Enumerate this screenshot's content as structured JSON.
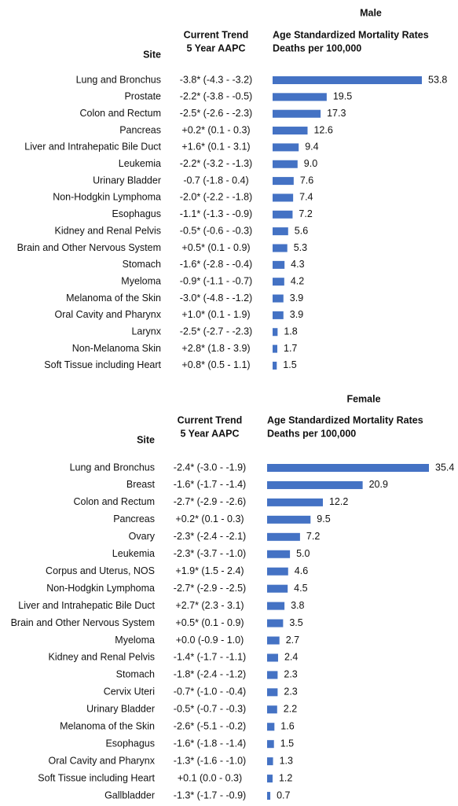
{
  "chart_data": [
    {
      "type": "bar",
      "title": "Male",
      "color": "#4472c4",
      "site_header": "Site",
      "trend_header": [
        "Current Trend",
        "5 Year AAPC"
      ],
      "value_header": [
        "Age Standardized Mortality Rates",
        "Deaths per 100,000"
      ],
      "categories": [
        "Lung and Bronchus",
        "Prostate",
        "Colon and Rectum",
        "Pancreas",
        "Liver and Intrahepatic Bile Duct",
        "Leukemia",
        "Urinary Bladder",
        "Non-Hodgkin Lymphoma",
        "Esophagus",
        "Kidney and Renal Pelvis",
        "Brain and Other Nervous System",
        "Stomach",
        "Myeloma",
        "Melanoma of the Skin",
        "Oral Cavity and Pharynx",
        "Larynx",
        "Non-Melanoma Skin",
        "Soft Tissue including Heart"
      ],
      "trends": [
        "-3.8* (-4.3 - -3.2)",
        "-2.2* (-3.8 - -0.5)",
        "-2.5* (-2.6 - -2.3)",
        "+0.2* (0.1 - 0.3)",
        "+1.6* (0.1 - 3.1)",
        "-2.2* (-3.2 - -1.3)",
        "-0.7 (-1.8 - 0.4)",
        "-2.0* (-2.2 - -1.8)",
        "-1.1* (-1.3 - -0.9)",
        "-0.5* (-0.6 - -0.3)",
        "+0.5* (0.1 - 0.9)",
        "-1.6* (-2.8 - -0.4)",
        "-0.9* (-1.1 - -0.7)",
        "-3.0* (-4.8 - -1.2)",
        "+1.0* (0.1 - 1.9)",
        "-2.5* (-2.7 - -2.3)",
        "+2.8* (1.8 - 3.9)",
        "+0.8* (0.5 - 1.1)"
      ],
      "values": [
        53.8,
        19.5,
        17.3,
        12.6,
        9.4,
        9.0,
        7.6,
        7.4,
        7.2,
        5.6,
        5.3,
        4.3,
        4.2,
        3.9,
        3.9,
        1.8,
        1.7,
        1.5
      ],
      "value_labels": [
        "53.8",
        "19.5",
        "17.3",
        "12.6",
        "9.4",
        "9.0",
        "7.6",
        "7.4",
        "7.2",
        "5.6",
        "5.3",
        "4.3",
        "4.2",
        "3.9",
        "3.9",
        "1.8",
        "1.7",
        "1.5"
      ]
    },
    {
      "type": "bar",
      "title": "Female",
      "color": "#4472c4",
      "site_header": "Site",
      "trend_header": [
        "Current Trend",
        "5 Year AAPC"
      ],
      "value_header": [
        "Age Standardized Mortality Rates",
        "Deaths per 100,000"
      ],
      "categories": [
        "Lung and Bronchus",
        "Breast",
        "Colon and Rectum",
        "Pancreas",
        "Ovary",
        "Leukemia",
        "Corpus and Uterus, NOS",
        "Non-Hodgkin Lymphoma",
        "Liver and Intrahepatic Bile Duct",
        "Brain and Other Nervous System",
        "Myeloma",
        "Kidney and Renal Pelvis",
        "Stomach",
        "Cervix Uteri",
        "Urinary Bladder",
        "Melanoma of the Skin",
        "Esophagus",
        "Oral Cavity and Pharynx",
        "Soft Tissue including Heart",
        "Gallbladder"
      ],
      "trends": [
        "-2.4* (-3.0 - -1.9)",
        "-1.6* (-1.7 - -1.4)",
        "-2.7* (-2.9 - -2.6)",
        "+0.2* (0.1 - 0.3)",
        "-2.3* (-2.4 - -2.1)",
        "-2.3* (-3.7 - -1.0)",
        "+1.9* (1.5 - 2.4)",
        "-2.7* (-2.9 - -2.5)",
        "+2.7* (2.3 - 3.1)",
        "+0.5* (0.1 - 0.9)",
        "+0.0 (-0.9 - 1.0)",
        "-1.4* (-1.7 - -1.1)",
        "-1.8* (-2.4 - -1.2)",
        "-0.7* (-1.0 - -0.4)",
        "-0.5* (-0.7 - -0.3)",
        "-2.6* (-5.1 - -0.2)",
        "-1.6* (-1.8 - -1.4)",
        "-1.3* (-1.6 - -1.0)",
        "+0.1 (0.0 - 0.3)",
        "-1.3* (-1.7 - -0.9)"
      ],
      "values": [
        35.4,
        20.9,
        12.2,
        9.5,
        7.2,
        5.0,
        4.6,
        4.5,
        3.8,
        3.5,
        2.7,
        2.4,
        2.3,
        2.3,
        2.2,
        1.6,
        1.5,
        1.3,
        1.2,
        0.7
      ],
      "value_labels": [
        "35.4",
        "20.9",
        "12.2",
        "9.5",
        "7.2",
        "5.0",
        "4.6",
        "4.5",
        "3.8",
        "3.5",
        "2.7",
        "2.4",
        "2.3",
        "2.3",
        "2.2",
        "1.6",
        "1.5",
        "1.3",
        "1.2",
        "0.7"
      ]
    }
  ]
}
